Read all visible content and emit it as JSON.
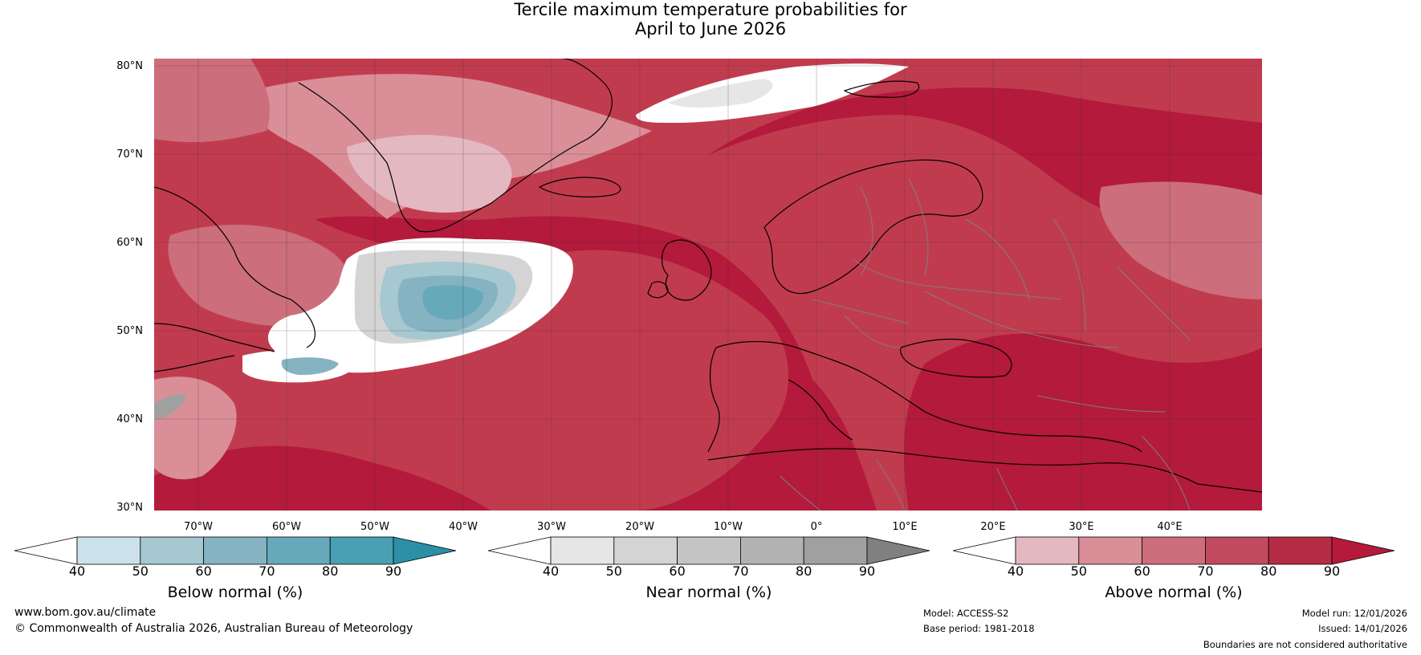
{
  "title": {
    "line1": "Tercile maximum temperature probabilities for",
    "line2": "April to June 2026"
  },
  "map": {
    "lat_labels": [
      "80°N",
      "70°N",
      "60°N",
      "50°N",
      "40°N",
      "30°N"
    ],
    "lon_labels": [
      "70°W",
      "60°W",
      "50°W",
      "40°W",
      "30°W",
      "20°W",
      "10°W",
      "0°",
      "10°E",
      "20°E",
      "30°E",
      "40°E"
    ],
    "extent": {
      "lon_min": -75,
      "lon_max": 50,
      "lat_min": 30,
      "lat_max": 81
    },
    "colors": {
      "above_default": "#c13b4f",
      "coastline": "#000000",
      "borders": "#7f7f7f",
      "gridlines": "#333333"
    }
  },
  "colorbars": [
    {
      "label": "Below normal (%)",
      "ticks": [
        "40",
        "50",
        "60",
        "70",
        "80",
        "90"
      ],
      "colors": [
        "#ffffff",
        "#cbe2ea",
        "#a6c8d0",
        "#86b3c2",
        "#66a9ba",
        "#48a0b2",
        "#2b8fa6"
      ]
    },
    {
      "label": "Near normal (%)",
      "ticks": [
        "40",
        "50",
        "60",
        "70",
        "80",
        "90"
      ],
      "colors": [
        "#ffffff",
        "#e6e6e6",
        "#d4d4d4",
        "#c4c4c4",
        "#b3b3b3",
        "#a0a0a0",
        "#808080"
      ]
    },
    {
      "label": "Above normal (%)",
      "ticks": [
        "40",
        "50",
        "60",
        "70",
        "80",
        "90"
      ],
      "colors": [
        "#ffffff",
        "#e4b8c0",
        "#d98e98",
        "#cc6e7c",
        "#c24a5e",
        "#b72c45",
        "#b31a3b"
      ]
    }
  ],
  "footer": {
    "website": "www.bom.gov.au/climate",
    "copyright": "© Commonwealth of Australia 2026, Australian Bureau of Meteorology",
    "model": "Model: ACCESS-S2",
    "base_period": "Base period: 1981-2018",
    "model_run": "Model run: 12/01/2026",
    "issued": "Issued: 14/01/2026",
    "disclaimer": "Boundaries are not considered authoritative"
  }
}
